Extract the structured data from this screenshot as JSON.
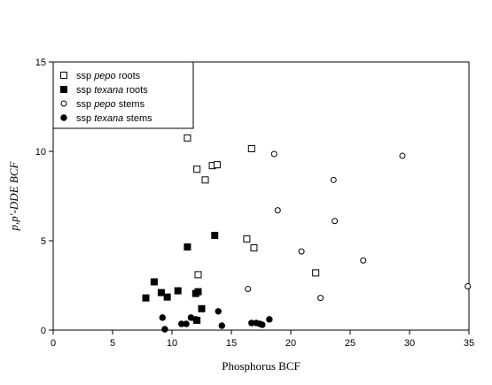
{
  "chart_data": {
    "type": "scatter",
    "title": "",
    "xlabel": "Phosphorus BCF",
    "ylabel": "p,p'-DDE BCF",
    "xlim": [
      0,
      35
    ],
    "ylim": [
      0,
      15
    ],
    "xticks": [
      "0",
      "5",
      "10",
      "15",
      "20",
      "25",
      "30",
      "35"
    ],
    "yticks": [
      "0",
      "5",
      "10",
      "15"
    ],
    "grid": false,
    "legend_position": "top-left",
    "series": [
      {
        "name": "ssp pepo roots",
        "legend_parts": [
          "ssp ",
          "pepo",
          " roots"
        ],
        "marker": "square-open",
        "x": [
          11.3,
          16.7,
          12.1,
          13.4,
          13.8,
          12.8,
          16.3,
          16.9,
          22.1,
          12.2
        ],
        "y": [
          10.75,
          10.15,
          9.0,
          9.2,
          9.25,
          8.4,
          5.1,
          4.6,
          3.2,
          3.1
        ]
      },
      {
        "name": "ssp texana roots",
        "legend_parts": [
          "ssp ",
          "texana",
          " roots"
        ],
        "marker": "square-filled",
        "x": [
          13.6,
          11.3,
          8.5,
          10.5,
          9.1,
          12.2,
          12.0,
          7.8,
          9.6,
          12.5,
          12.1
        ],
        "y": [
          5.3,
          4.65,
          2.7,
          2.2,
          2.1,
          2.15,
          2.05,
          1.8,
          1.85,
          1.2,
          0.55
        ]
      },
      {
        "name": "ssp pepo stems",
        "legend_parts": [
          "ssp ",
          "pepo",
          " stems"
        ],
        "marker": "circle-open",
        "x": [
          18.6,
          29.4,
          23.6,
          18.9,
          23.7,
          20.9,
          26.1,
          16.4,
          22.5,
          34.9
        ],
        "y": [
          9.85,
          9.75,
          8.4,
          6.7,
          6.1,
          4.4,
          3.9,
          2.3,
          1.8,
          2.45
        ]
      },
      {
        "name": "ssp texana stems",
        "legend_parts": [
          "ssp ",
          "texana",
          " stems"
        ],
        "marker": "circle-filled",
        "x": [
          9.2,
          9.4,
          10.8,
          11.2,
          11.6,
          12.0,
          13.9,
          14.2,
          16.7,
          17.1,
          17.4,
          17.6,
          18.2
        ],
        "y": [
          0.7,
          0.05,
          0.35,
          0.35,
          0.7,
          0.6,
          1.05,
          0.25,
          0.4,
          0.4,
          0.35,
          0.3,
          0.6
        ]
      }
    ]
  }
}
